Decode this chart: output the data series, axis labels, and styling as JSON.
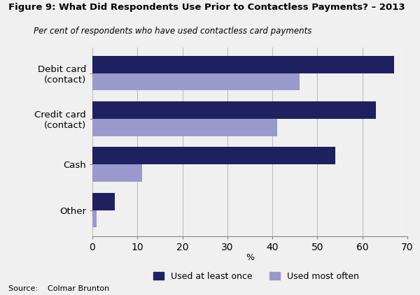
{
  "title": "Figure 9: What Did Respondents Use Prior to Contactless Payments? – 2013",
  "subtitle": "Per cent of respondents who have used contactless card payments",
  "xlabel": "%",
  "source": "Source:    Colmar Brunton",
  "categories": [
    "Debit card\n(contact)",
    "Credit card\n(contact)",
    "Cash",
    "Other"
  ],
  "used_at_least_once": [
    67,
    63,
    54,
    5
  ],
  "used_most_often": [
    46,
    41,
    11,
    1
  ],
  "color_at_least_once": "#1f2060",
  "color_most_often": "#9999cc",
  "xlim": [
    0,
    70
  ],
  "xticks": [
    0,
    10,
    20,
    30,
    40,
    50,
    60,
    70
  ],
  "bar_height": 0.38,
  "legend_labels": [
    "Used at least once",
    "Used most often"
  ],
  "figsize": [
    6.0,
    4.22
  ],
  "dpi": 100,
  "bg_color": "#f0f0f0"
}
